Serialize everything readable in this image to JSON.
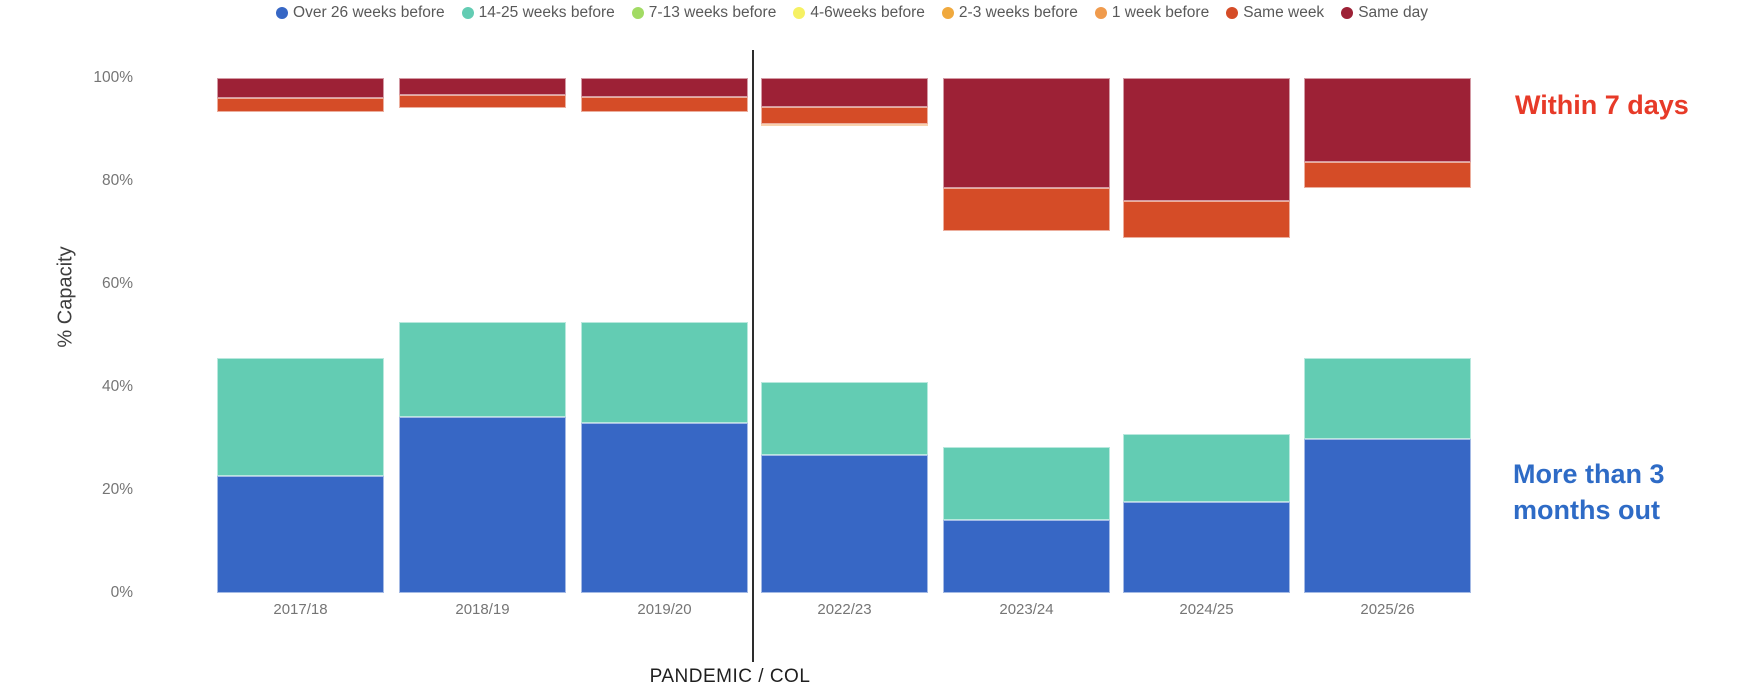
{
  "chart_data": {
    "type": "bar",
    "stacked": true,
    "title": "",
    "ylabel": "% Capacity",
    "xlabel": "",
    "ylim": [
      0,
      100
    ],
    "grid": false,
    "legend_position": "top-center",
    "categories": [
      "2017/18",
      "2018/19",
      "2019/20",
      "2022/23",
      "2023/24",
      "2024/25",
      "2025/26"
    ],
    "y_ticks": [
      {
        "label": "100%",
        "value": 100
      },
      {
        "label": "80%",
        "value": 80
      },
      {
        "label": "60%",
        "value": 60
      },
      {
        "label": "40%",
        "value": 40
      },
      {
        "label": "20%",
        "value": 20
      },
      {
        "label": "0%",
        "value": 0
      }
    ],
    "series": [
      {
        "key": "over26",
        "name": "Over 26 weeks before",
        "color": "#3767c5",
        "values": [
          22.8,
          34.1,
          33.0,
          26.8,
          14.2,
          17.7,
          29.9
        ]
      },
      {
        "key": "w14_25",
        "name": "14-25 weeks before",
        "color": "#63ccb3",
        "values": [
          22.8,
          18.6,
          19.6,
          14.2,
          14.1,
          13.2,
          15.7
        ]
      },
      {
        "key": "w7_13",
        "name": "7-13 weeks before",
        "color": "#a2db64",
        "values": [
          0,
          0,
          0,
          0,
          0,
          0,
          0
        ]
      },
      {
        "key": "w4_6",
        "name": "4-6weeks before",
        "color": "#f6f163",
        "values": [
          0,
          0,
          0,
          0,
          0,
          0,
          0
        ]
      },
      {
        "key": "w2_3",
        "name": "2-3 weeks before",
        "color": "#f0a93e",
        "values": [
          0,
          0,
          0,
          0,
          0,
          0,
          0
        ]
      },
      {
        "key": "w1",
        "name": "1 week before",
        "color": "#f09b4d",
        "values": [
          0,
          0,
          0,
          0.4,
          0,
          0,
          0
        ]
      },
      {
        "key": "same_week",
        "name": "Same week",
        "color": "#d54c27",
        "values": [
          2.6,
          2.5,
          2.9,
          3.3,
          8.4,
          7.1,
          4.9
        ]
      },
      {
        "key": "same_day",
        "name": "Same day",
        "color": "#9d2136",
        "values": [
          4.0,
          3.3,
          3.7,
          5.6,
          21.3,
          24.0,
          16.4
        ]
      }
    ],
    "bars": [
      {
        "category": "2017/18",
        "segments": [
          {
            "key": "over26",
            "from": 0,
            "to": 22.8
          },
          {
            "key": "w14_25",
            "from": 22.8,
            "to": 45.6
          },
          {
            "key": "same_week",
            "from": 93.4,
            "to": 96.0
          },
          {
            "key": "same_day",
            "from": 96.0,
            "to": 100
          }
        ]
      },
      {
        "category": "2018/19",
        "segments": [
          {
            "key": "over26",
            "from": 0,
            "to": 34.1
          },
          {
            "key": "w14_25",
            "from": 34.1,
            "to": 52.7
          },
          {
            "key": "same_week",
            "from": 94.2,
            "to": 96.7
          },
          {
            "key": "same_day",
            "from": 96.7,
            "to": 100
          }
        ]
      },
      {
        "category": "2019/20",
        "segments": [
          {
            "key": "over26",
            "from": 0,
            "to": 33.0
          },
          {
            "key": "w14_25",
            "from": 33.0,
            "to": 52.6
          },
          {
            "key": "same_week",
            "from": 93.4,
            "to": 96.3
          },
          {
            "key": "same_day",
            "from": 96.3,
            "to": 100
          }
        ]
      },
      {
        "category": "2022/23",
        "segments": [
          {
            "key": "over26",
            "from": 0,
            "to": 26.8
          },
          {
            "key": "w14_25",
            "from": 26.8,
            "to": 41.0
          },
          {
            "key": "w1",
            "from": 90.7,
            "to": 91.1
          },
          {
            "key": "same_week",
            "from": 91.1,
            "to": 94.4
          },
          {
            "key": "same_day",
            "from": 94.4,
            "to": 100
          }
        ]
      },
      {
        "category": "2023/24",
        "segments": [
          {
            "key": "over26",
            "from": 0,
            "to": 14.2
          },
          {
            "key": "w14_25",
            "from": 14.2,
            "to": 28.3
          },
          {
            "key": "same_week",
            "from": 70.3,
            "to": 78.7
          },
          {
            "key": "same_day",
            "from": 78.7,
            "to": 100
          }
        ]
      },
      {
        "category": "2024/25",
        "segments": [
          {
            "key": "over26",
            "from": 0,
            "to": 17.7
          },
          {
            "key": "w14_25",
            "from": 17.7,
            "to": 30.9
          },
          {
            "key": "same_week",
            "from": 68.9,
            "to": 76.0
          },
          {
            "key": "same_day",
            "from": 76.0,
            "to": 100
          }
        ]
      },
      {
        "category": "2025/26",
        "segments": [
          {
            "key": "over26",
            "from": 0,
            "to": 29.9
          },
          {
            "key": "w14_25",
            "from": 29.9,
            "to": 45.6
          },
          {
            "key": "same_week",
            "from": 78.7,
            "to": 83.6
          },
          {
            "key": "same_day",
            "from": 83.6,
            "to": 100
          }
        ]
      }
    ],
    "separator": {
      "label": "PANDEMIC / COL",
      "between": [
        "2019/20",
        "2022/23"
      ]
    },
    "annotations": [
      {
        "id": "within7",
        "text": "Within 7 days",
        "color": "#e73a28",
        "refers_to": "top red segments"
      },
      {
        "id": "more3",
        "text": "More than 3 months out",
        "lines": [
          "More than 3",
          "months out"
        ],
        "color": "#2e6bc6",
        "refers_to": "bottom blue/teal segments"
      }
    ]
  }
}
